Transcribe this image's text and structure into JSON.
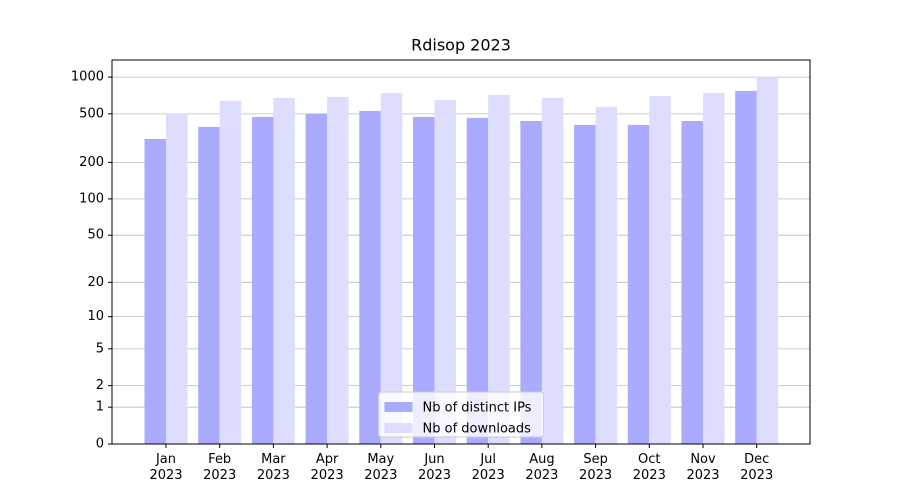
{
  "chart_data": {
    "type": "bar",
    "title": "Rdisop 2023",
    "categories": [
      "Jan\n2023",
      "Feb\n2023",
      "Mar\n2023",
      "Apr\n2023",
      "May\n2023",
      "Jun\n2023",
      "Jul\n2023",
      "Aug\n2023",
      "Sep\n2023",
      "Oct\n2023",
      "Nov\n2023",
      "Dec\n2023"
    ],
    "series": [
      {
        "name": "Nb of distinct IPs",
        "color": "#aaaaff",
        "values": [
          311,
          391,
          472,
          499,
          528,
          472,
          463,
          437,
          406,
          406,
          437,
          769
        ]
      },
      {
        "name": "Nb of downloads",
        "color": "#ddddff",
        "values": [
          500,
          638,
          675,
          687,
          741,
          650,
          714,
          675,
          570,
          700,
          741,
          1000
        ]
      }
    ],
    "yscale": "log1p",
    "ylim": [
      0,
      1380
    ],
    "yticks": [
      0,
      1,
      2,
      5,
      10,
      20,
      50,
      100,
      200,
      500,
      1000
    ],
    "grid": true,
    "legend": "lower center"
  }
}
